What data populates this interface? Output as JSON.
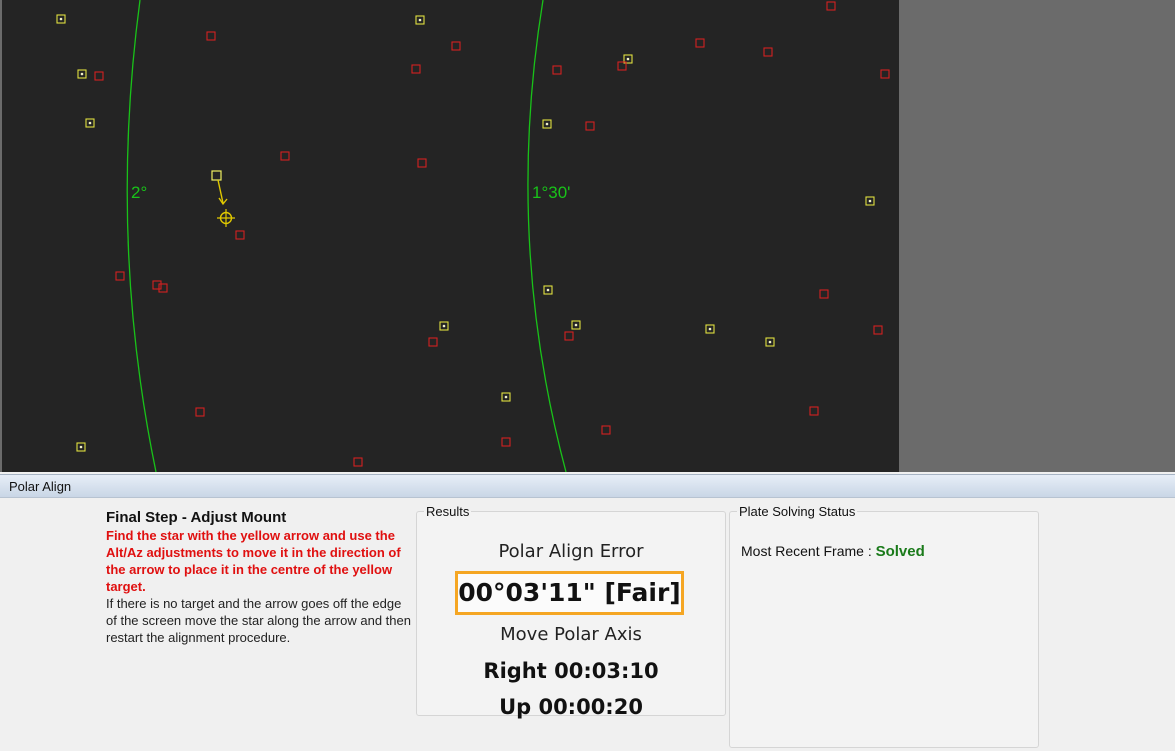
{
  "sky": {
    "background": "#242424",
    "circle_color": "#19c219",
    "labels": {
      "outer_ring": "2°",
      "inner_ring": "1°30'"
    },
    "detected_star_color": "#e0e040",
    "reference_star_color": "#d42020",
    "arrow_color": "#e0c800"
  },
  "panel": {
    "title": "Polar Align",
    "instructions": {
      "heading": "Final Step - Adjust Mount",
      "warning": "Find the star with the yellow arrow and use the Alt/Az adjustments to move it in the direction of the arrow to place it in the centre of the yellow target.",
      "note": "If there is no target and the arrow goes off the edge of the screen move the star along the arrow and then restart the alignment procedure."
    },
    "results": {
      "legend": "Results",
      "error_label": "Polar Align Error",
      "error_value": "00°03'11\" [Fair]",
      "move_label": "Move Polar Axis",
      "move_right": "Right 00:03:10",
      "move_up": "Up 00:00:20",
      "highlight_color": "#f5a623"
    },
    "plate_solving": {
      "legend": "Plate Solving Status",
      "recent_label": "Most Recent Frame :",
      "recent_value": "Solved"
    }
  }
}
